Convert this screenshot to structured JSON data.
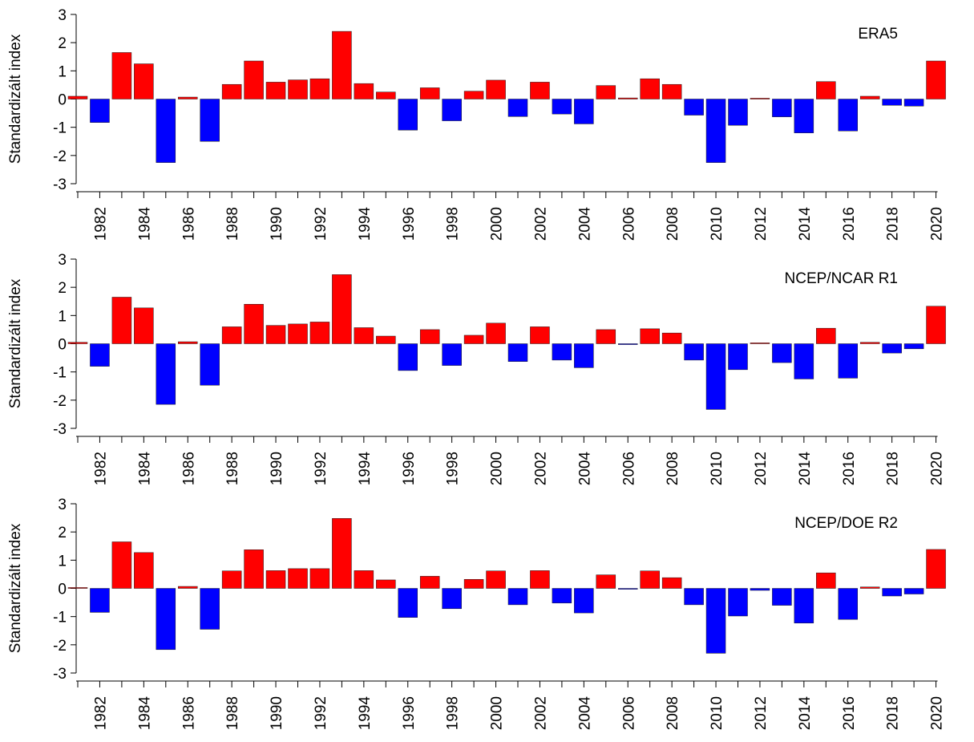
{
  "chart_data": [
    {
      "type": "bar",
      "title": "ERA5",
      "ylabel": "Standardizált index",
      "ylim": [
        -3,
        3
      ],
      "yticks": [
        3,
        2,
        1,
        0,
        -1,
        -2,
        -3
      ],
      "xtick_labels": [
        "1982",
        "1984",
        "1986",
        "1988",
        "1990",
        "1992",
        "1994",
        "1996",
        "1998",
        "2000",
        "2002",
        "2004",
        "2006",
        "2008",
        "2010",
        "2012",
        "2014",
        "2016",
        "2018",
        "2020"
      ],
      "positive_color": "#ff0000",
      "negative_color": "#0000ff",
      "categories": [
        1981,
        1982,
        1983,
        1984,
        1985,
        1986,
        1987,
        1988,
        1989,
        1990,
        1991,
        1992,
        1993,
        1994,
        1995,
        1996,
        1997,
        1998,
        1999,
        2000,
        2001,
        2002,
        2003,
        2004,
        2005,
        2006,
        2007,
        2008,
        2009,
        2010,
        2011,
        2012,
        2013,
        2014,
        2015,
        2016,
        2017,
        2018,
        2019,
        2020
      ],
      "values": [
        0.1,
        -0.83,
        1.65,
        1.25,
        -2.25,
        0.07,
        -1.5,
        0.52,
        1.35,
        0.6,
        0.68,
        0.72,
        2.4,
        0.55,
        0.25,
        -1.1,
        0.4,
        -0.77,
        0.28,
        0.67,
        -0.62,
        0.6,
        -0.53,
        -0.88,
        0.48,
        0.04,
        0.72,
        0.52,
        -0.57,
        -2.25,
        -0.93,
        0.03,
        -0.63,
        -1.2,
        0.62,
        -1.13,
        0.1,
        -0.22,
        -0.25,
        1.35
      ]
    },
    {
      "type": "bar",
      "title": "NCEP/NCAR R1",
      "ylabel": "Standardizált index",
      "ylim": [
        -3,
        3
      ],
      "yticks": [
        3,
        2,
        1,
        0,
        -1,
        -2,
        -3
      ],
      "xtick_labels": [
        "1982",
        "1984",
        "1986",
        "1988",
        "1990",
        "1992",
        "1994",
        "1996",
        "1998",
        "2000",
        "2002",
        "2004",
        "2006",
        "2008",
        "2010",
        "2012",
        "2014",
        "2016",
        "2018",
        "2020"
      ],
      "positive_color": "#ff0000",
      "negative_color": "#0000ff",
      "categories": [
        1981,
        1982,
        1983,
        1984,
        1985,
        1986,
        1987,
        1988,
        1989,
        1990,
        1991,
        1992,
        1993,
        1994,
        1995,
        1996,
        1997,
        1998,
        1999,
        2000,
        2001,
        2002,
        2003,
        2004,
        2005,
        2006,
        2007,
        2008,
        2009,
        2010,
        2011,
        2012,
        2013,
        2014,
        2015,
        2016,
        2017,
        2018,
        2019,
        2020
      ],
      "values": [
        0.05,
        -0.8,
        1.65,
        1.27,
        -2.15,
        0.07,
        -1.47,
        0.6,
        1.4,
        0.65,
        0.7,
        0.77,
        2.45,
        0.57,
        0.27,
        -0.95,
        0.5,
        -0.77,
        0.3,
        0.73,
        -0.63,
        0.6,
        -0.58,
        -0.85,
        0.5,
        -0.03,
        0.53,
        0.38,
        -0.58,
        -2.33,
        -0.92,
        0.03,
        -0.67,
        -1.25,
        0.55,
        -1.22,
        0.05,
        -0.33,
        -0.18,
        1.33
      ]
    },
    {
      "type": "bar",
      "title": "NCEP/DOE R2",
      "ylabel": "Standardizált index",
      "ylim": [
        -3,
        3
      ],
      "yticks": [
        3,
        2,
        1,
        0,
        -1,
        -2,
        -3
      ],
      "xtick_labels": [
        "1982",
        "1984",
        "1986",
        "1988",
        "1990",
        "1992",
        "1994",
        "1996",
        "1998",
        "2000",
        "2002",
        "2004",
        "2006",
        "2008",
        "2010",
        "2012",
        "2014",
        "2016",
        "2018",
        "2020"
      ],
      "positive_color": "#ff0000",
      "negative_color": "#0000ff",
      "categories": [
        1981,
        1982,
        1983,
        1984,
        1985,
        1986,
        1987,
        1988,
        1989,
        1990,
        1991,
        1992,
        1993,
        1994,
        1995,
        1996,
        1997,
        1998,
        1999,
        2000,
        2001,
        2002,
        2003,
        2004,
        2005,
        2006,
        2007,
        2008,
        2009,
        2010,
        2011,
        2012,
        2013,
        2014,
        2015,
        2016,
        2017,
        2018,
        2019,
        2020
      ],
      "values": [
        0.03,
        -0.85,
        1.65,
        1.27,
        -2.17,
        0.07,
        -1.45,
        0.62,
        1.37,
        0.63,
        0.7,
        0.7,
        2.48,
        0.63,
        0.3,
        -1.03,
        0.43,
        -0.72,
        0.32,
        0.62,
        -0.58,
        0.63,
        -0.52,
        -0.87,
        0.48,
        -0.03,
        0.62,
        0.38,
        -0.58,
        -2.3,
        -0.98,
        -0.07,
        -0.6,
        -1.23,
        0.55,
        -1.1,
        0.05,
        -0.27,
        -0.2,
        1.38
      ]
    }
  ]
}
